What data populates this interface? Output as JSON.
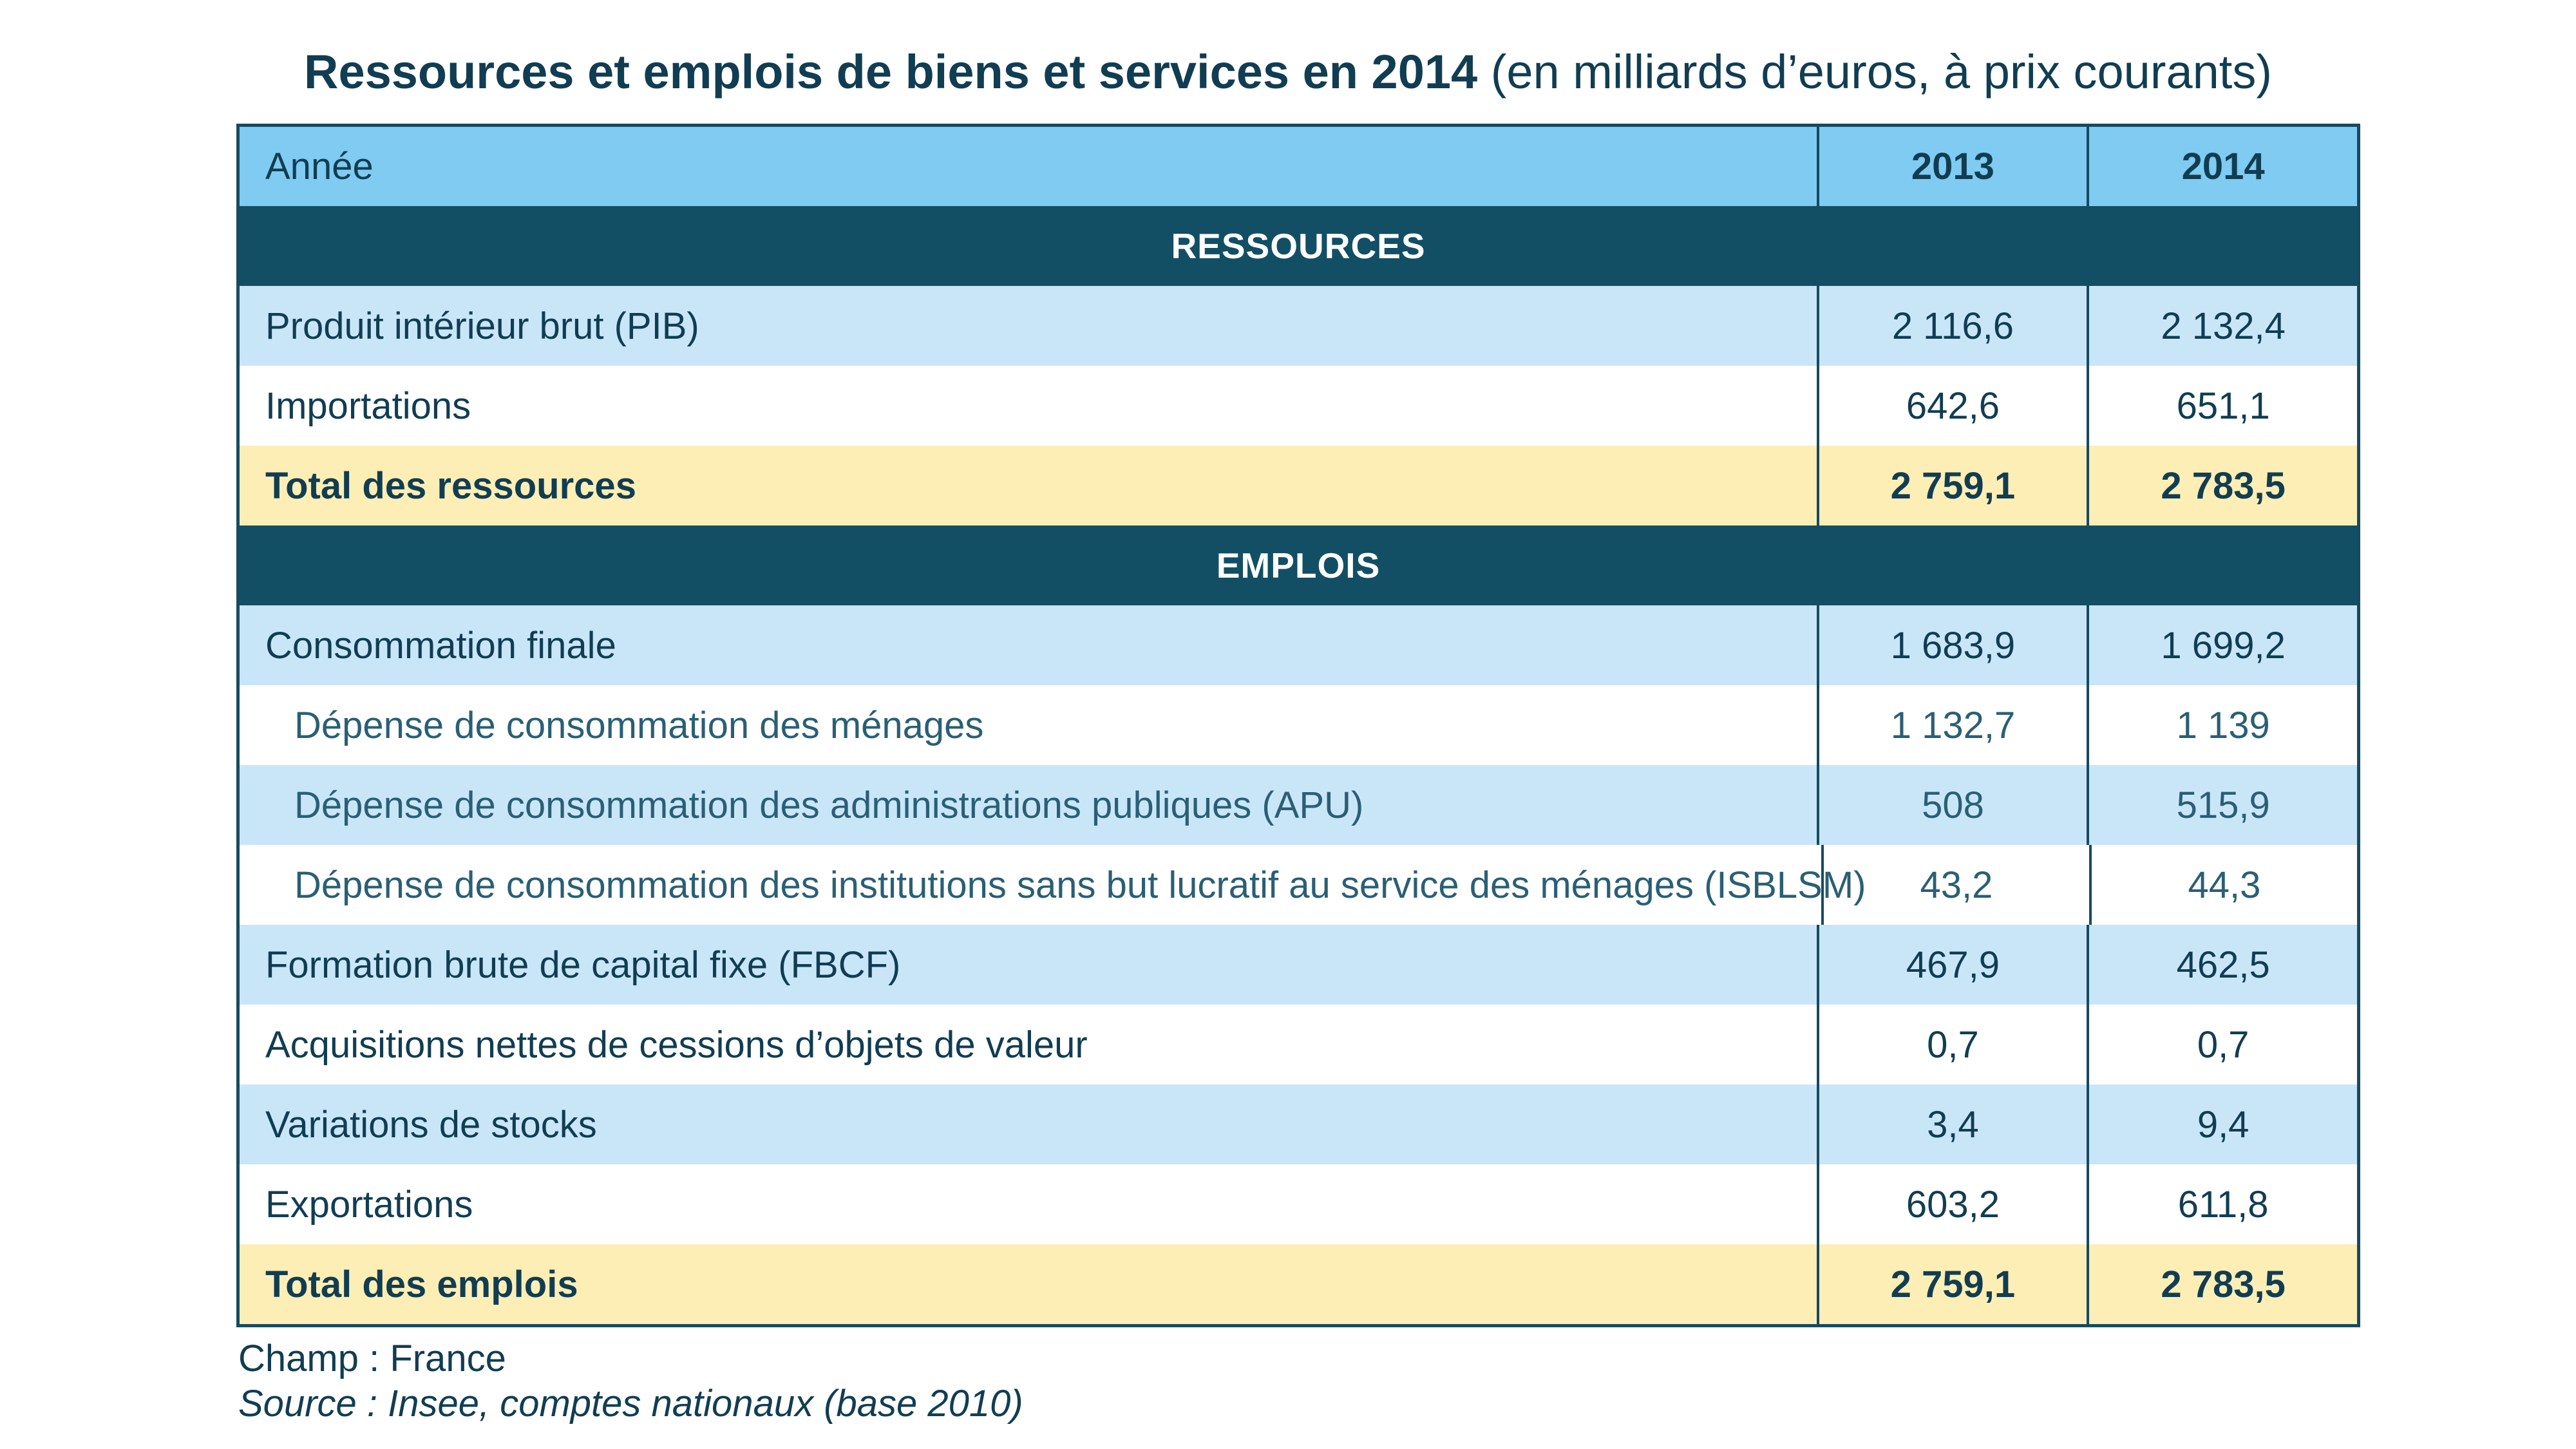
{
  "title": {
    "main": "Ressources et emplois de biens et services en 2014",
    "unit": "(en milliards d’euros, à prix courants)"
  },
  "table": {
    "header": {
      "label": "Année",
      "y1": "2013",
      "y2": "2014"
    },
    "sections": {
      "ressources": "RESSOURCES",
      "emplois": "EMPLOIS"
    },
    "rows": [
      {
        "label": "Produit intérieur brut (PIB)",
        "y1": "2 116,6",
        "y2": "2 132,4"
      },
      {
        "label": "Importations",
        "y1": "642,6",
        "y2": "651,1"
      },
      {
        "label": "Total des ressources",
        "y1": "2 759,1",
        "y2": "2 783,5"
      },
      {
        "label": "Consommation finale",
        "y1": "1 683,9",
        "y2": "1 699,2"
      },
      {
        "label": "Dépense de consommation des ménages",
        "y1": "1 132,7",
        "y2": "1 139"
      },
      {
        "label": "Dépense de consommation des administrations publiques (APU)",
        "y1": "508",
        "y2": "515,9"
      },
      {
        "label": "Dépense de consommation des institutions sans but lucratif au service des ménages (ISBLSM)",
        "y1": "43,2",
        "y2": "44,3"
      },
      {
        "label": "Formation brute de capital fixe (FBCF)",
        "y1": "467,9",
        "y2": "462,5"
      },
      {
        "label": "Acquisitions nettes de cessions d’objets de valeur",
        "y1": "0,7",
        "y2": "0,7"
      },
      {
        "label": "Variations de stocks",
        "y1": "3,4",
        "y2": "9,4"
      },
      {
        "label": "Exportations",
        "y1": "603,2",
        "y2": "611,8"
      },
      {
        "label": "Total des emplois",
        "y1": "2 759,1",
        "y2": "2 783,5"
      }
    ]
  },
  "footer": {
    "champ": "Champ : France",
    "source": "Source : Insee, comptes nationaux (base 2010)"
  },
  "colors": {
    "header": "#7fcbf1",
    "section": "#124f64",
    "row_blue": "#c9e6f9",
    "total": "#fdeeb6",
    "text": "#113d52"
  }
}
